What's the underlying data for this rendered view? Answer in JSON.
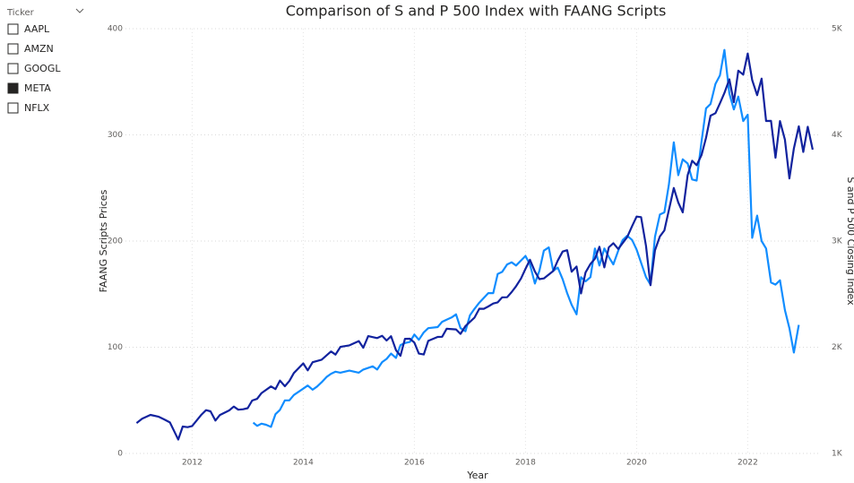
{
  "slicer": {
    "title": "Ticker",
    "items": [
      {
        "label": "AAPL",
        "checked": false
      },
      {
        "label": "AMZN",
        "checked": false
      },
      {
        "label": "GOOGL",
        "checked": false
      },
      {
        "label": "META",
        "checked": true
      },
      {
        "label": "NFLX",
        "checked": false
      }
    ]
  },
  "chart_data": {
    "type": "line",
    "title": "Comparison of S and P 500 Index with FAANG Scripts",
    "x_label": "Year",
    "y_label": "FAANG Scripts Prices",
    "y2_label": "S and P 500 Closing Index",
    "xlim": [
      2010.8,
      2023.3
    ],
    "xticks": [
      2012,
      2014,
      2016,
      2018,
      2020,
      2022
    ],
    "ylim": [
      0,
      400
    ],
    "yticks": [
      0,
      100,
      200,
      300,
      400
    ],
    "y2lim": [
      1000,
      5000
    ],
    "y2ticks": [
      {
        "value": 1000,
        "label": "1K"
      },
      {
        "value": 2000,
        "label": "2K"
      },
      {
        "value": 3000,
        "label": "3K"
      },
      {
        "value": 4000,
        "label": "4K"
      },
      {
        "value": 5000,
        "label": "5K"
      }
    ],
    "grid": true,
    "series": [
      {
        "color": "#118DFF",
        "x": [
          2013.1,
          2013.17,
          2013.25,
          2013.33,
          2013.42,
          2013.5,
          2013.58,
          2013.67,
          2013.75,
          2013.83,
          2014.0,
          2014.08,
          2014.17,
          2014.25,
          2014.33,
          2014.42,
          2014.5,
          2014.58,
          2014.67,
          2014.83,
          2015.0,
          2015.08,
          2015.25,
          2015.33,
          2015.42,
          2015.5,
          2015.58,
          2015.67,
          2015.75,
          2015.83,
          2015.92,
          2016.0,
          2016.08,
          2016.17,
          2016.25,
          2016.42,
          2016.5,
          2016.58,
          2016.67,
          2016.75,
          2016.83,
          2016.92,
          2017.0,
          2017.08,
          2017.17,
          2017.33,
          2017.42,
          2017.5,
          2017.58,
          2017.67,
          2017.75,
          2017.83,
          2018.0,
          2018.08,
          2018.17,
          2018.25,
          2018.33,
          2018.42,
          2018.5,
          2018.58,
          2018.67,
          2018.75,
          2018.83,
          2018.92,
          2019.0,
          2019.08,
          2019.17,
          2019.25,
          2019.33,
          2019.42,
          2019.5,
          2019.58,
          2019.67,
          2019.75,
          2019.83,
          2019.92,
          2020.0,
          2020.17,
          2020.25,
          2020.33,
          2020.42,
          2020.5,
          2020.58,
          2020.67,
          2020.75,
          2020.83,
          2020.92,
          2021.0,
          2021.08,
          2021.17,
          2021.25,
          2021.33,
          2021.42,
          2021.5,
          2021.58,
          2021.67,
          2021.75,
          2021.83,
          2021.92,
          2022.0,
          2022.08,
          2022.17,
          2022.25,
          2022.33,
          2022.42,
          2022.5,
          2022.58,
          2022.67,
          2022.75,
          2022.83,
          2022.92
        ],
        "values": [
          29,
          26,
          28,
          27,
          25,
          37,
          41,
          50,
          50,
          55,
          61,
          64,
          60,
          63,
          67,
          72,
          75,
          77,
          76,
          78,
          76,
          79,
          82,
          79,
          86,
          89,
          94,
          90,
          102,
          104,
          105,
          112,
          107,
          114,
          118,
          119,
          124,
          126,
          128,
          131,
          118,
          115,
          130,
          136,
          142,
          151,
          151,
          169,
          171,
          178,
          180,
          177,
          186,
          178,
          160,
          172,
          191,
          194,
          172,
          175,
          164,
          151,
          140,
          131,
          166,
          162,
          166,
          193,
          177,
          193,
          185,
          178,
          191,
          201,
          205,
          201,
          192,
          166,
          159,
          204,
          225,
          227,
          253,
          293,
          262,
          277,
          273,
          258,
          257,
          294,
          325,
          329,
          348,
          356,
          380,
          339,
          324,
          336,
          313,
          319,
          203,
          224,
          200,
          193,
          161,
          159,
          163,
          135,
          118,
          95,
          121
        ]
      },
      {
        "color": "#12239E",
        "axis": "y2",
        "x": [
          2011.0,
          2011.1,
          2011.25,
          2011.4,
          2011.5,
          2011.6,
          2011.67,
          2011.75,
          2011.83,
          2011.92,
          2012.0,
          2012.17,
          2012.25,
          2012.33,
          2012.42,
          2012.5,
          2012.67,
          2012.75,
          2012.83,
          2012.92,
          2013.0,
          2013.08,
          2013.17,
          2013.25,
          2013.42,
          2013.5,
          2013.58,
          2013.67,
          2013.75,
          2013.83,
          2014.0,
          2014.08,
          2014.17,
          2014.33,
          2014.5,
          2014.58,
          2014.67,
          2014.83,
          2015.0,
          2015.08,
          2015.17,
          2015.33,
          2015.42,
          2015.5,
          2015.58,
          2015.67,
          2015.75,
          2015.83,
          2015.92,
          2016.0,
          2016.08,
          2016.17,
          2016.25,
          2016.42,
          2016.5,
          2016.58,
          2016.75,
          2016.83,
          2016.92,
          2017.0,
          2017.08,
          2017.17,
          2017.25,
          2017.33,
          2017.42,
          2017.5,
          2017.58,
          2017.67,
          2017.75,
          2017.83,
          2017.92,
          2018.0,
          2018.08,
          2018.17,
          2018.25,
          2018.33,
          2018.5,
          2018.58,
          2018.67,
          2018.75,
          2018.83,
          2018.92,
          2019.0,
          2019.08,
          2019.17,
          2019.25,
          2019.33,
          2019.42,
          2019.5,
          2019.58,
          2019.67,
          2019.83,
          2019.92,
          2020.0,
          2020.08,
          2020.17,
          2020.25,
          2020.33,
          2020.42,
          2020.5,
          2020.67,
          2020.75,
          2020.83,
          2020.92,
          2021.0,
          2021.08,
          2021.17,
          2021.25,
          2021.33,
          2021.42,
          2021.5,
          2021.58,
          2021.67,
          2021.75,
          2021.83,
          2021.92,
          2022.0,
          2022.08,
          2022.17,
          2022.25,
          2022.33,
          2022.42,
          2022.5,
          2022.58,
          2022.67,
          2022.75,
          2022.83,
          2022.92,
          2023.0,
          2023.08,
          2023.17
        ],
        "values": [
          1286,
          1327,
          1363,
          1345,
          1320,
          1292,
          1218,
          1131,
          1253,
          1247,
          1258,
          1366,
          1408,
          1397,
          1310,
          1362,
          1406,
          1441,
          1412,
          1416,
          1426,
          1498,
          1514,
          1569,
          1631,
          1606,
          1686,
          1633,
          1682,
          1757,
          1848,
          1782,
          1859,
          1883,
          1960,
          1931,
          2003,
          2018,
          2058,
          1995,
          2105,
          2086,
          2107,
          2063,
          2104,
          1972,
          1920,
          2079,
          2080,
          2044,
          1940,
          1932,
          2060,
          2097,
          2099,
          2174,
          2168,
          2126,
          2199,
          2239,
          2278,
          2363,
          2362,
          2384,
          2412,
          2423,
          2470,
          2471,
          2519,
          2575,
          2647,
          2738,
          2824,
          2714,
          2641,
          2648,
          2718,
          2816,
          2901,
          2914,
          2711,
          2760,
          2507,
          2704,
          2784,
          2834,
          2946,
          2752,
          2941,
          2980,
          2926,
          3037,
          3141,
          3230,
          3225,
          2954,
          2584,
          2912,
          3044,
          3100,
          3500,
          3363,
          3270,
          3622,
          3756,
          3714,
          3811,
          3973,
          4181,
          4204,
          4297,
          4395,
          4523,
          4307,
          4605,
          4567,
          4766,
          4516,
          4374,
          4530,
          4131,
          4132,
          3785,
          4130,
          3955,
          3590,
          3872,
          4080,
          3840,
          4076,
          3861
        ]
      }
    ]
  }
}
